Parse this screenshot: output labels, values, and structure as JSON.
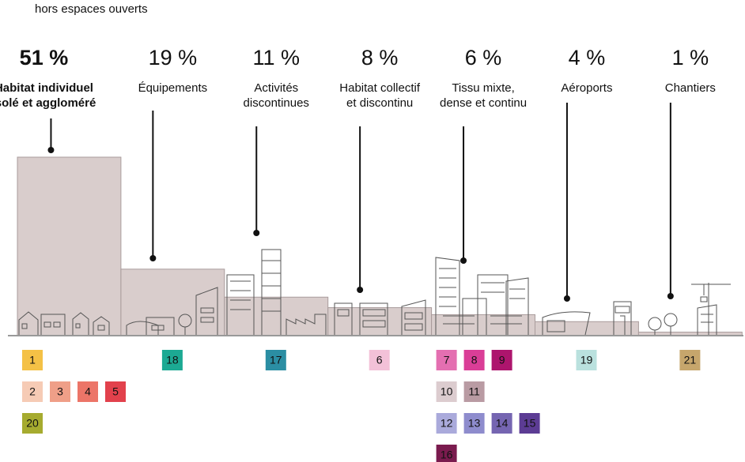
{
  "chart_data": {
    "type": "bar",
    "subtitle": "hors espaces ouverts",
    "categories": [
      [
        "Habitat individuel",
        "isolé et aggloméré"
      ],
      [
        "Équipements"
      ],
      [
        "Activités",
        "discontinues"
      ],
      [
        "Habitat collectif",
        "et discontinu"
      ],
      [
        "Tissu mixte,",
        "dense et continu"
      ],
      [
        "Aéroports"
      ],
      [
        "Chantiers"
      ]
    ],
    "values": [
      51,
      19,
      11,
      8,
      6,
      4,
      1
    ],
    "value_labels": [
      "51 %",
      "19 %",
      "11 %",
      "8 %",
      "6 %",
      "4 %",
      "1 %"
    ],
    "ylim": [
      0,
      51
    ],
    "color": "#d9cdcc",
    "highlight": 0,
    "code_groups": [
      [
        [
          {
            "label": "1",
            "color": "#f4c146"
          }
        ],
        [
          {
            "label": "2",
            "color": "#f6cbb5"
          },
          {
            "label": "3",
            "color": "#ef9f88"
          },
          {
            "label": "4",
            "color": "#ec7568"
          },
          {
            "label": "5",
            "color": "#e2414c"
          }
        ],
        [
          {
            "label": "20",
            "color": "#a6ab2f"
          }
        ]
      ],
      [
        [
          {
            "label": "18",
            "color": "#1ca993"
          }
        ]
      ],
      [
        [
          {
            "label": "17",
            "color": "#2b8ea3"
          }
        ]
      ],
      [
        [
          {
            "label": "6",
            "color": "#f3c1d8"
          }
        ]
      ],
      [
        [
          {
            "label": "7",
            "color": "#e46fb1"
          },
          {
            "label": "8",
            "color": "#da3e97"
          },
          {
            "label": "9",
            "color": "#ad156d"
          }
        ],
        [
          {
            "label": "10",
            "color": "#dccccf"
          },
          {
            "label": "11",
            "color": "#b99ba3"
          }
        ],
        [
          {
            "label": "12",
            "color": "#aaaadb"
          },
          {
            "label": "13",
            "color": "#8e8ccd"
          },
          {
            "label": "14",
            "color": "#7565b1"
          },
          {
            "label": "15",
            "color": "#5c3c94"
          }
        ],
        [
          {
            "label": "16",
            "color": "#7a1b4e"
          }
        ]
      ],
      [
        [
          {
            "label": "19",
            "color": "#bae1de"
          }
        ]
      ],
      [
        [
          {
            "label": "21",
            "color": "#c6a66c"
          }
        ]
      ]
    ]
  }
}
